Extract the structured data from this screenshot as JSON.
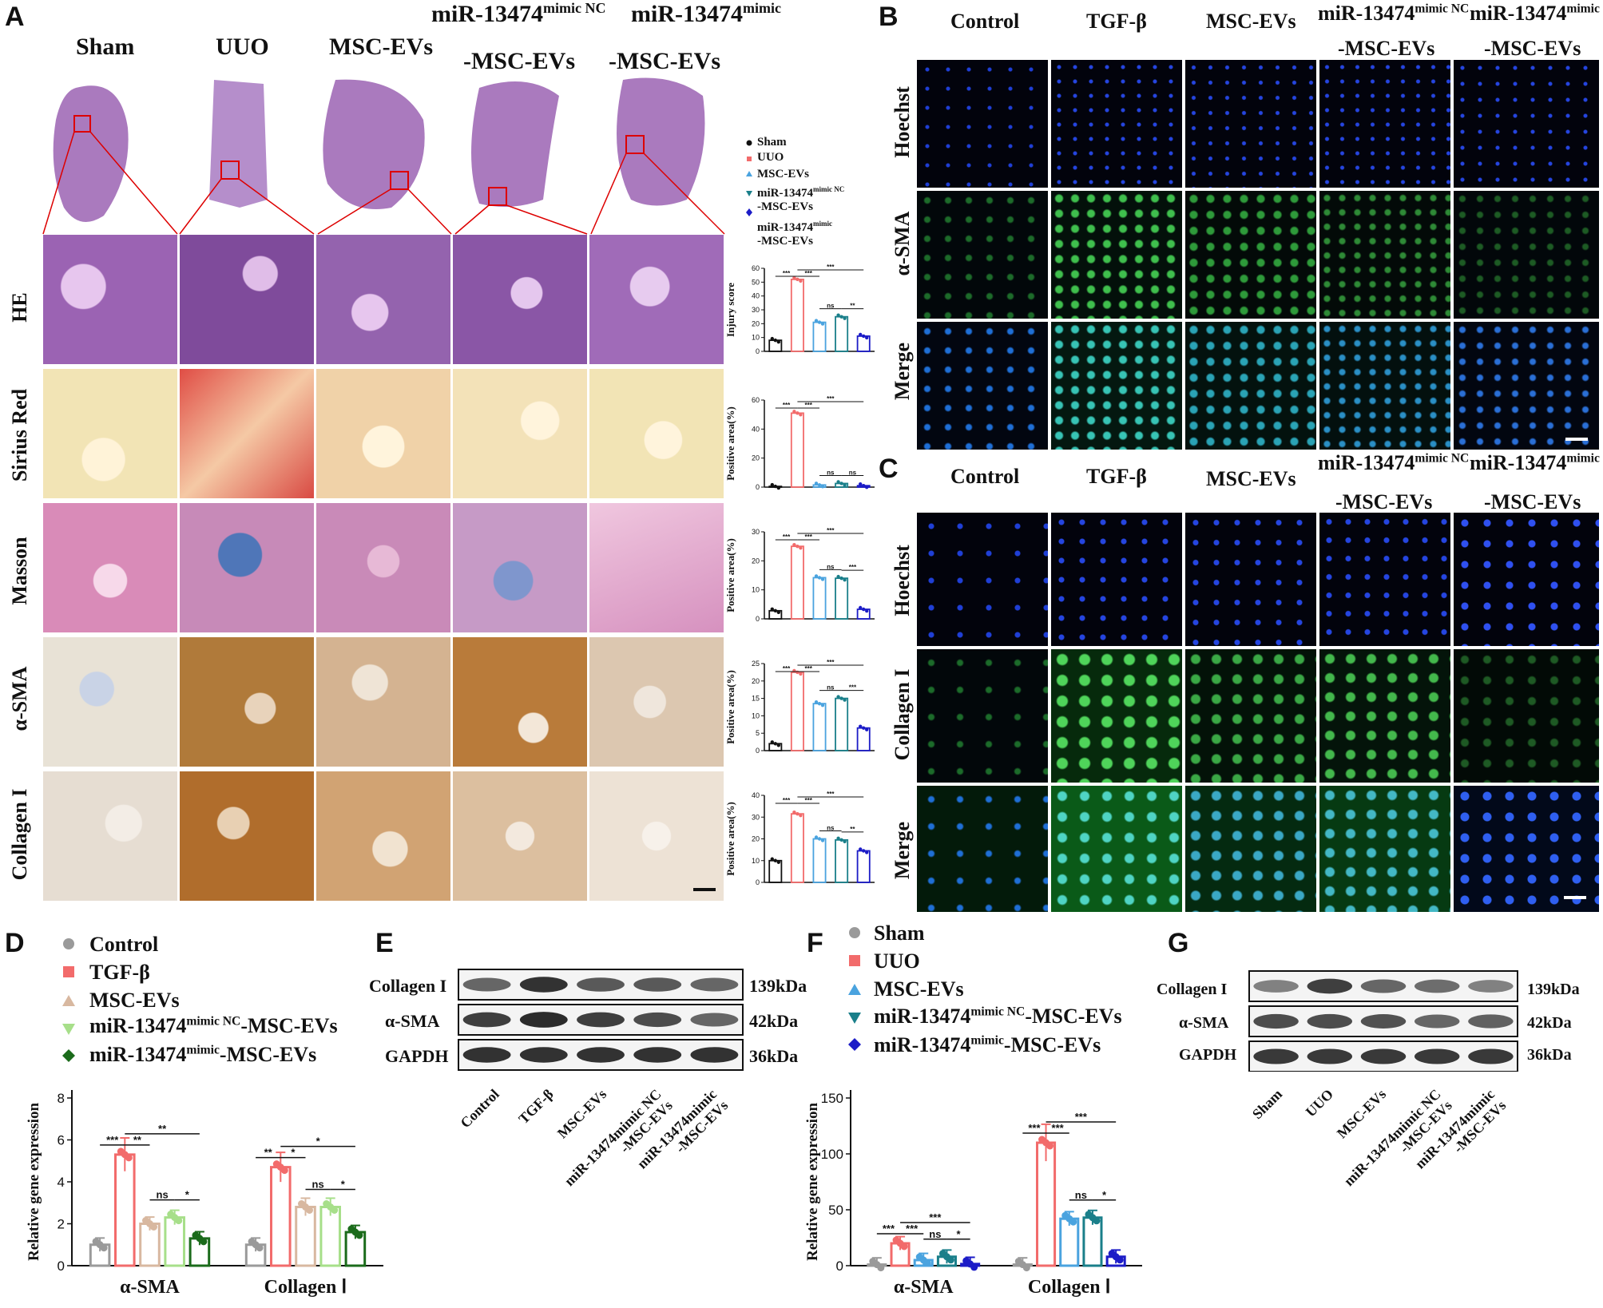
{
  "panel_letters": {
    "A": "A",
    "B": "B",
    "C": "C",
    "D": "D",
    "E": "E",
    "F": "F",
    "G": "G"
  },
  "panelA": {
    "top_heading_mimic": "miR-13474",
    "top_heading_sup1": "mimic NC",
    "top_heading_mimic2": "miR-13474",
    "top_heading_sup2": "mimic",
    "columns": [
      "Sham",
      "UUO",
      "MSC-EVs",
      "-MSC-EVs",
      "-MSC-EVs"
    ],
    "rows": [
      "HE",
      "Sirius Red",
      "Masson",
      "α-SMA",
      "Collagen I"
    ],
    "colors": {
      "he": "#9b63b3",
      "sirius": "#f2e4b5",
      "sirius_red": "#d84a43",
      "masson": "#d9a3c4",
      "masson_blue": "#4f76b8",
      "ihc": "#e8dccb",
      "ihc_brown": "#b06d2c"
    },
    "legend": {
      "items": [
        {
          "label": "Sham",
          "color": "#111111",
          "marker": "circle"
        },
        {
          "label": "UUO",
          "color": "#f26b6b",
          "marker": "square"
        },
        {
          "label": "MSC-EVs",
          "color": "#4aa3df",
          "marker": "triangle"
        },
        {
          "label": "miR-13474",
          "sup": "mimic NC",
          "line2": "-MSC-EVs",
          "color": "#1a7f8a",
          "marker": "triangle-down"
        },
        {
          "label": "miR-13474",
          "sup": "mimic",
          "line2": "-MSC-EVs",
          "color": "#1c1cc7",
          "marker": "diamond"
        }
      ]
    }
  },
  "panelB": {
    "columns": [
      "Control",
      "TGF-β",
      "MSC-EVs",
      "-MSC-EVs",
      "-MSC-EVs"
    ],
    "head_mimic_nc": "miR-13474",
    "head_mimic_nc_sup": "mimic NC",
    "head_mimic": "miR-13474",
    "head_mimic_sup": "mimic",
    "rows": [
      "Hoechst",
      "α-SMA",
      "Merge"
    ]
  },
  "panelC": {
    "columns": [
      "Control",
      "TGF-β",
      "MSC-EVs",
      "-MSC-EVs",
      "-MSC-EVs"
    ],
    "head_mimic_nc": "miR-13474",
    "head_mimic_nc_sup": "mimic NC",
    "head_mimic": "miR-13474",
    "head_mimic_sup": "mimic",
    "rows": [
      "Hoechst",
      "Collagen I",
      "Merge"
    ]
  },
  "panelE": {
    "bands": [
      "Collagen I",
      "α-SMA",
      "GAPDH"
    ],
    "kda": [
      "139kDa",
      "42kDa",
      "36kDa"
    ],
    "lanes": [
      "Control",
      "TGF-β",
      "MSC-EVs",
      "miR-13474mimic NC",
      "miR-13474mimic"
    ],
    "lane_line2": [
      "",
      "",
      "",
      "-MSC-EVs",
      "-MSC-EVs"
    ]
  },
  "panelG": {
    "bands": [
      "Collagen I",
      "α-SMA",
      "GAPDH"
    ],
    "kda": [
      "139kDa",
      "42kDa",
      "36kDa"
    ],
    "lanes": [
      "Sham",
      "UUO",
      "MSC-EVs",
      "miR-13474mimic NC",
      "miR-13474mimic"
    ],
    "lane_line2": [
      "",
      "",
      "",
      "-MSC-EVs",
      "-MSC-EVs"
    ]
  },
  "legendD": {
    "items": [
      {
        "label": "Control",
        "color": "#9a9a9a",
        "marker": "circle"
      },
      {
        "label": "TGF-β",
        "color": "#f26b6b",
        "marker": "square"
      },
      {
        "label": "MSC-EVs",
        "color": "#d8b8a0",
        "marker": "triangle"
      },
      {
        "label": "miR-13474",
        "sup": "mimic NC",
        "tail": "-MSC-EVs",
        "color": "#a7df8a",
        "marker": "triangle-down"
      },
      {
        "label": "miR-13474",
        "sup": "mimic",
        "tail": "-MSC-EVs",
        "color": "#1b6b1b",
        "marker": "diamond"
      }
    ]
  },
  "legendF": {
    "items": [
      {
        "label": "Sham",
        "color": "#9a9a9a",
        "marker": "circle"
      },
      {
        "label": "UUO",
        "color": "#f26b6b",
        "marker": "square"
      },
      {
        "label": "MSC-EVs",
        "color": "#4aa3df",
        "marker": "triangle"
      },
      {
        "label": "miR-13474",
        "sup": "mimic NC",
        "tail": "-MSC-EVs",
        "color": "#1a7f8a",
        "marker": "triangle-down"
      },
      {
        "label": "miR-13474",
        "sup": "mimic",
        "tail": "-MSC-EVs",
        "color": "#1c1cc7",
        "marker": "diamond"
      }
    ]
  },
  "chart_data": [
    {
      "id": "A-injury",
      "type": "bar",
      "ylabel": "Injury score",
      "ylim": [
        0,
        60
      ],
      "yticks": [
        0,
        10,
        20,
        30,
        40,
        50,
        60
      ],
      "categories": [
        "Sham",
        "UUO",
        "MSC-EVs",
        "miR-13474 mimic NC-MSC-EVs",
        "miR-13474 mimic-MSC-EVs"
      ],
      "values": [
        8,
        52,
        21,
        25,
        11
      ],
      "colors": [
        "#111111",
        "#f26b6b",
        "#4aa3df",
        "#1a7f8a",
        "#1c1cc7"
      ],
      "sig": [
        {
          "a": 0,
          "b": 1,
          "text": "***",
          "level": 0
        },
        {
          "a": 1,
          "b": 2,
          "text": "***",
          "level": 0
        },
        {
          "a": 1,
          "b": 4,
          "text": "***",
          "level": 1
        },
        {
          "a": 2,
          "b": 3,
          "text": "ns",
          "level": -1
        },
        {
          "a": 3,
          "b": 4,
          "text": "**",
          "level": -1
        }
      ]
    },
    {
      "id": "A-sirius",
      "type": "bar",
      "ylabel": "Positive area(%)",
      "ylim": [
        0,
        60
      ],
      "yticks": [
        0,
        20,
        40,
        60
      ],
      "categories": [
        "Sham",
        "UUO",
        "MSC-EVs",
        "miR-13474 mimic NC-MSC-EVs",
        "miR-13474 mimic-MSC-EVs"
      ],
      "values": [
        0.5,
        51,
        1.5,
        2.5,
        1
      ],
      "colors": [
        "#111111",
        "#f26b6b",
        "#4aa3df",
        "#1a7f8a",
        "#1c1cc7"
      ],
      "sig": [
        {
          "a": 0,
          "b": 1,
          "text": "***",
          "level": 0
        },
        {
          "a": 1,
          "b": 2,
          "text": "***",
          "level": 0
        },
        {
          "a": 1,
          "b": 4,
          "text": "***",
          "level": 1
        },
        {
          "a": 2,
          "b": 3,
          "text": "ns",
          "level": -1
        },
        {
          "a": 3,
          "b": 4,
          "text": "ns",
          "level": -1
        }
      ]
    },
    {
      "id": "A-masson",
      "type": "bar",
      "ylabel": "Positive area(%)",
      "ylim": [
        0,
        30
      ],
      "yticks": [
        0,
        10,
        20,
        30
      ],
      "categories": [
        "Sham",
        "UUO",
        "MSC-EVs",
        "miR-13474 mimic NC-MSC-EVs",
        "miR-13474 mimic-MSC-EVs"
      ],
      "values": [
        2.8,
        25,
        14.2,
        14,
        3.3
      ],
      "colors": [
        "#111111",
        "#f26b6b",
        "#4aa3df",
        "#1a7f8a",
        "#1c1cc7"
      ],
      "sig": [
        {
          "a": 0,
          "b": 1,
          "text": "***",
          "level": 0
        },
        {
          "a": 1,
          "b": 2,
          "text": "***",
          "level": 0
        },
        {
          "a": 1,
          "b": 4,
          "text": "***",
          "level": 1
        },
        {
          "a": 2,
          "b": 3,
          "text": "ns",
          "level": -1
        },
        {
          "a": 3,
          "b": 4,
          "text": "***",
          "level": -1
        }
      ]
    },
    {
      "id": "A-asma",
      "type": "bar",
      "ylabel": "Positive area(%)",
      "ylim": [
        0,
        25
      ],
      "yticks": [
        0,
        5,
        10,
        15,
        20,
        25
      ],
      "categories": [
        "Sham",
        "UUO",
        "MSC-EVs",
        "miR-13474 mimic NC-MSC-EVs",
        "miR-13474 mimic-MSC-EVs"
      ],
      "values": [
        2,
        22.5,
        13.5,
        15,
        6.5
      ],
      "colors": [
        "#111111",
        "#f26b6b",
        "#4aa3df",
        "#1a7f8a",
        "#1c1cc7"
      ],
      "sig": [
        {
          "a": 0,
          "b": 1,
          "text": "***",
          "level": 0
        },
        {
          "a": 1,
          "b": 2,
          "text": "***",
          "level": 0
        },
        {
          "a": 1,
          "b": 4,
          "text": "***",
          "level": 1
        },
        {
          "a": 2,
          "b": 3,
          "text": "ns",
          "level": -1
        },
        {
          "a": 3,
          "b": 4,
          "text": "***",
          "level": -1
        }
      ]
    },
    {
      "id": "A-col",
      "type": "bar",
      "ylabel": "Positive area(%)",
      "ylim": [
        0,
        40
      ],
      "yticks": [
        0,
        10,
        20,
        30,
        40
      ],
      "categories": [
        "Sham",
        "UUO",
        "MSC-EVs",
        "miR-13474 mimic NC-MSC-EVs",
        "miR-13474 mimic-MSC-EVs"
      ],
      "values": [
        10,
        31.5,
        20,
        19.5,
        14.5
      ],
      "colors": [
        "#111111",
        "#f26b6b",
        "#4aa3df",
        "#1a7f8a",
        "#1c1cc7"
      ],
      "sig": [
        {
          "a": 0,
          "b": 1,
          "text": "***",
          "level": 0
        },
        {
          "a": 1,
          "b": 2,
          "text": "***",
          "level": 0
        },
        {
          "a": 1,
          "b": 4,
          "text": "***",
          "level": 1
        },
        {
          "a": 2,
          "b": 3,
          "text": "ns",
          "level": -1
        },
        {
          "a": 3,
          "b": 4,
          "text": "**",
          "level": -1
        }
      ]
    },
    {
      "id": "D",
      "type": "bar",
      "ylabel": "Relative gene expression",
      "ylim": [
        0,
        8
      ],
      "yticks": [
        0,
        2,
        4,
        6,
        8
      ],
      "groups": [
        "α-SMA",
        "Collagen Ⅰ"
      ],
      "series": [
        {
          "name": "Control",
          "values": [
            1.0,
            1.0
          ],
          "color": "#9a9a9a"
        },
        {
          "name": "TGF-β",
          "values": [
            5.3,
            4.7
          ],
          "color": "#f26b6b"
        },
        {
          "name": "MSC-EVs",
          "values": [
            2.0,
            2.8
          ],
          "color": "#d8b8a0"
        },
        {
          "name": "miR-13474 mimic NC-MSC-EVs",
          "values": [
            2.3,
            2.8
          ],
          "color": "#a7df8a"
        },
        {
          "name": "miR-13474 mimic-MSC-EVs",
          "values": [
            1.3,
            1.6
          ],
          "color": "#1b6b1b"
        }
      ],
      "sig": [
        {
          "g": 0,
          "a": 0,
          "b": 1,
          "text": "***",
          "level": 0
        },
        {
          "g": 0,
          "a": 1,
          "b": 2,
          "text": "**",
          "level": 0
        },
        {
          "g": 0,
          "a": 1,
          "b": 4,
          "text": "**",
          "level": 1
        },
        {
          "g": 0,
          "a": 2,
          "b": 3,
          "text": "ns",
          "level": -1
        },
        {
          "g": 0,
          "a": 3,
          "b": 4,
          "text": "*",
          "level": -1
        },
        {
          "g": 1,
          "a": 0,
          "b": 1,
          "text": "**",
          "level": 0
        },
        {
          "g": 1,
          "a": 1,
          "b": 2,
          "text": "*",
          "level": 0
        },
        {
          "g": 1,
          "a": 1,
          "b": 4,
          "text": "*",
          "level": 1
        },
        {
          "g": 1,
          "a": 2,
          "b": 3,
          "text": "ns",
          "level": -1
        },
        {
          "g": 1,
          "a": 3,
          "b": 4,
          "text": "*",
          "level": -1
        }
      ]
    },
    {
      "id": "F",
      "type": "bar",
      "ylabel": "Relative gene expression",
      "ylim": [
        0,
        150
      ],
      "yticks": [
        0,
        50,
        100,
        150
      ],
      "groups": [
        "α-SMA",
        "Collagen Ⅰ"
      ],
      "series": [
        {
          "name": "Sham",
          "values": [
            1,
            1
          ],
          "color": "#9a9a9a"
        },
        {
          "name": "UUO",
          "values": [
            20,
            110
          ],
          "color": "#f26b6b"
        },
        {
          "name": "MSC-EVs",
          "values": [
            5,
            42
          ],
          "color": "#4aa3df"
        },
        {
          "name": "miR-13474 mimic NC-MSC-EVs",
          "values": [
            8,
            43
          ],
          "color": "#1a7f8a"
        },
        {
          "name": "miR-13474 mimic-MSC-EVs",
          "values": [
            1.5,
            8
          ],
          "color": "#1c1cc7"
        }
      ],
      "sig": [
        {
          "g": 0,
          "a": 0,
          "b": 1,
          "text": "***",
          "level": 0
        },
        {
          "g": 0,
          "a": 1,
          "b": 2,
          "text": "***",
          "level": 0
        },
        {
          "g": 0,
          "a": 1,
          "b": 4,
          "text": "***",
          "level": 1
        },
        {
          "g": 0,
          "a": 2,
          "b": 3,
          "text": "ns",
          "level": -1
        },
        {
          "g": 0,
          "a": 3,
          "b": 4,
          "text": "*",
          "level": -1
        },
        {
          "g": 1,
          "a": 0,
          "b": 1,
          "text": "***",
          "level": 0
        },
        {
          "g": 1,
          "a": 1,
          "b": 2,
          "text": "***",
          "level": 0
        },
        {
          "g": 1,
          "a": 1,
          "b": 4,
          "text": "***",
          "level": 1
        },
        {
          "g": 1,
          "a": 2,
          "b": 3,
          "text": "ns",
          "level": -1
        },
        {
          "g": 1,
          "a": 3,
          "b": 4,
          "text": "*",
          "level": -1
        }
      ]
    }
  ]
}
